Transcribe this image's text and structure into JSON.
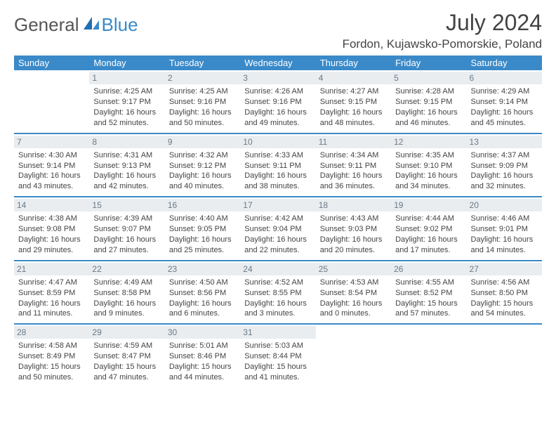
{
  "brand": {
    "part1": "General",
    "part2": "Blue"
  },
  "title": "July 2024",
  "location": "Fordon, Kujawsko-Pomorskie, Poland",
  "colors": {
    "header_bg": "#3a8ac9",
    "header_text": "#ffffff",
    "daynum_bg": "#e9edf0",
    "daynum_text": "#6a7a88",
    "body_text": "#444444",
    "rule": "#3a8ac9"
  },
  "day_headers": [
    "Sunday",
    "Monday",
    "Tuesday",
    "Wednesday",
    "Thursday",
    "Friday",
    "Saturday"
  ],
  "weeks": [
    [
      null,
      {
        "n": "1",
        "sr": "Sunrise: 4:25 AM",
        "ss": "Sunset: 9:17 PM",
        "d1": "Daylight: 16 hours",
        "d2": "and 52 minutes."
      },
      {
        "n": "2",
        "sr": "Sunrise: 4:25 AM",
        "ss": "Sunset: 9:16 PM",
        "d1": "Daylight: 16 hours",
        "d2": "and 50 minutes."
      },
      {
        "n": "3",
        "sr": "Sunrise: 4:26 AM",
        "ss": "Sunset: 9:16 PM",
        "d1": "Daylight: 16 hours",
        "d2": "and 49 minutes."
      },
      {
        "n": "4",
        "sr": "Sunrise: 4:27 AM",
        "ss": "Sunset: 9:15 PM",
        "d1": "Daylight: 16 hours",
        "d2": "and 48 minutes."
      },
      {
        "n": "5",
        "sr": "Sunrise: 4:28 AM",
        "ss": "Sunset: 9:15 PM",
        "d1": "Daylight: 16 hours",
        "d2": "and 46 minutes."
      },
      {
        "n": "6",
        "sr": "Sunrise: 4:29 AM",
        "ss": "Sunset: 9:14 PM",
        "d1": "Daylight: 16 hours",
        "d2": "and 45 minutes."
      }
    ],
    [
      {
        "n": "7",
        "sr": "Sunrise: 4:30 AM",
        "ss": "Sunset: 9:14 PM",
        "d1": "Daylight: 16 hours",
        "d2": "and 43 minutes."
      },
      {
        "n": "8",
        "sr": "Sunrise: 4:31 AM",
        "ss": "Sunset: 9:13 PM",
        "d1": "Daylight: 16 hours",
        "d2": "and 42 minutes."
      },
      {
        "n": "9",
        "sr": "Sunrise: 4:32 AM",
        "ss": "Sunset: 9:12 PM",
        "d1": "Daylight: 16 hours",
        "d2": "and 40 minutes."
      },
      {
        "n": "10",
        "sr": "Sunrise: 4:33 AM",
        "ss": "Sunset: 9:11 PM",
        "d1": "Daylight: 16 hours",
        "d2": "and 38 minutes."
      },
      {
        "n": "11",
        "sr": "Sunrise: 4:34 AM",
        "ss": "Sunset: 9:11 PM",
        "d1": "Daylight: 16 hours",
        "d2": "and 36 minutes."
      },
      {
        "n": "12",
        "sr": "Sunrise: 4:35 AM",
        "ss": "Sunset: 9:10 PM",
        "d1": "Daylight: 16 hours",
        "d2": "and 34 minutes."
      },
      {
        "n": "13",
        "sr": "Sunrise: 4:37 AM",
        "ss": "Sunset: 9:09 PM",
        "d1": "Daylight: 16 hours",
        "d2": "and 32 minutes."
      }
    ],
    [
      {
        "n": "14",
        "sr": "Sunrise: 4:38 AM",
        "ss": "Sunset: 9:08 PM",
        "d1": "Daylight: 16 hours",
        "d2": "and 29 minutes."
      },
      {
        "n": "15",
        "sr": "Sunrise: 4:39 AM",
        "ss": "Sunset: 9:07 PM",
        "d1": "Daylight: 16 hours",
        "d2": "and 27 minutes."
      },
      {
        "n": "16",
        "sr": "Sunrise: 4:40 AM",
        "ss": "Sunset: 9:05 PM",
        "d1": "Daylight: 16 hours",
        "d2": "and 25 minutes."
      },
      {
        "n": "17",
        "sr": "Sunrise: 4:42 AM",
        "ss": "Sunset: 9:04 PM",
        "d1": "Daylight: 16 hours",
        "d2": "and 22 minutes."
      },
      {
        "n": "18",
        "sr": "Sunrise: 4:43 AM",
        "ss": "Sunset: 9:03 PM",
        "d1": "Daylight: 16 hours",
        "d2": "and 20 minutes."
      },
      {
        "n": "19",
        "sr": "Sunrise: 4:44 AM",
        "ss": "Sunset: 9:02 PM",
        "d1": "Daylight: 16 hours",
        "d2": "and 17 minutes."
      },
      {
        "n": "20",
        "sr": "Sunrise: 4:46 AM",
        "ss": "Sunset: 9:01 PM",
        "d1": "Daylight: 16 hours",
        "d2": "and 14 minutes."
      }
    ],
    [
      {
        "n": "21",
        "sr": "Sunrise: 4:47 AM",
        "ss": "Sunset: 8:59 PM",
        "d1": "Daylight: 16 hours",
        "d2": "and 11 minutes."
      },
      {
        "n": "22",
        "sr": "Sunrise: 4:49 AM",
        "ss": "Sunset: 8:58 PM",
        "d1": "Daylight: 16 hours",
        "d2": "and 9 minutes."
      },
      {
        "n": "23",
        "sr": "Sunrise: 4:50 AM",
        "ss": "Sunset: 8:56 PM",
        "d1": "Daylight: 16 hours",
        "d2": "and 6 minutes."
      },
      {
        "n": "24",
        "sr": "Sunrise: 4:52 AM",
        "ss": "Sunset: 8:55 PM",
        "d1": "Daylight: 16 hours",
        "d2": "and 3 minutes."
      },
      {
        "n": "25",
        "sr": "Sunrise: 4:53 AM",
        "ss": "Sunset: 8:54 PM",
        "d1": "Daylight: 16 hours",
        "d2": "and 0 minutes."
      },
      {
        "n": "26",
        "sr": "Sunrise: 4:55 AM",
        "ss": "Sunset: 8:52 PM",
        "d1": "Daylight: 15 hours",
        "d2": "and 57 minutes."
      },
      {
        "n": "27",
        "sr": "Sunrise: 4:56 AM",
        "ss": "Sunset: 8:50 PM",
        "d1": "Daylight: 15 hours",
        "d2": "and 54 minutes."
      }
    ],
    [
      {
        "n": "28",
        "sr": "Sunrise: 4:58 AM",
        "ss": "Sunset: 8:49 PM",
        "d1": "Daylight: 15 hours",
        "d2": "and 50 minutes."
      },
      {
        "n": "29",
        "sr": "Sunrise: 4:59 AM",
        "ss": "Sunset: 8:47 PM",
        "d1": "Daylight: 15 hours",
        "d2": "and 47 minutes."
      },
      {
        "n": "30",
        "sr": "Sunrise: 5:01 AM",
        "ss": "Sunset: 8:46 PM",
        "d1": "Daylight: 15 hours",
        "d2": "and 44 minutes."
      },
      {
        "n": "31",
        "sr": "Sunrise: 5:03 AM",
        "ss": "Sunset: 8:44 PM",
        "d1": "Daylight: 15 hours",
        "d2": "and 41 minutes."
      },
      null,
      null,
      null
    ]
  ]
}
